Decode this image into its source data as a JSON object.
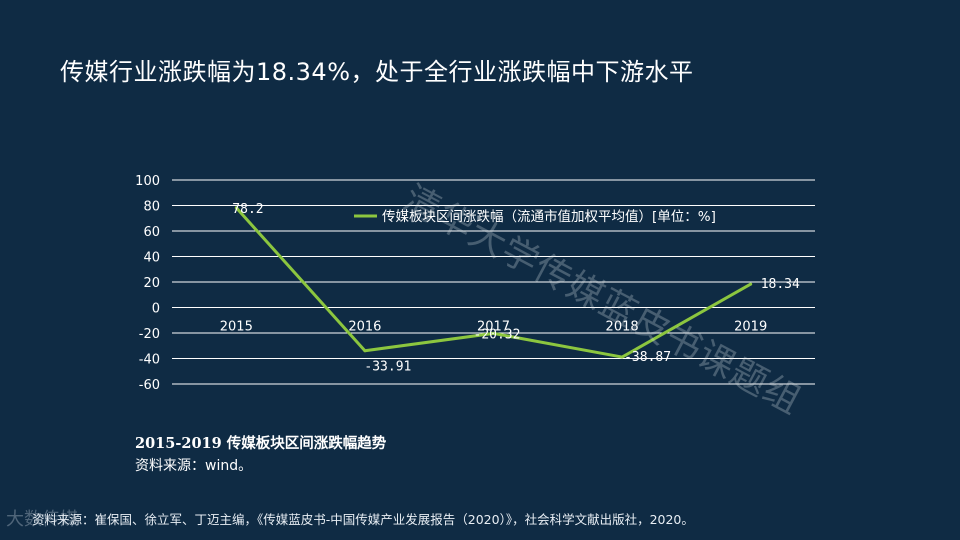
{
  "title": "传媒行业涨跌幅为18.34%，处于全行业涨跌幅中下游水平",
  "watermark": "清华大学传媒蓝皮书课题组",
  "caption": "2015-2019 传媒板块区间涨跌幅趋势",
  "source": "资料来源：wind。",
  "footnote": "资料来源：崔保国、徐立军、丁迈主编，《传媒蓝皮书-中国传媒产业发展报告（2020）》，社会科学文献出版社，2020。",
  "logo_text": "大数传媒",
  "colors": {
    "background": "#0f2b44",
    "line": "#8cc63f",
    "grid": "#ffffff"
  },
  "chart_data": {
    "type": "line",
    "categories": [
      "2015",
      "2016",
      "2017",
      "2018",
      "2019"
    ],
    "series": [
      {
        "name": "传媒板块区间涨跌幅（流通市值加权平均值）[单位：%]",
        "values": [
          78.2,
          -33.91,
          -20.32,
          -38.87,
          18.34
        ]
      }
    ],
    "data_labels": [
      "78.2",
      "-33.91",
      "-20.32",
      "-38.87",
      "18.34"
    ],
    "yticks": [
      "100",
      "80",
      "60",
      "40",
      "20",
      "0",
      "-20",
      "-40",
      "-60"
    ],
    "ylim": [
      -60,
      100
    ],
    "grid": true,
    "legend_position": "top-right"
  }
}
